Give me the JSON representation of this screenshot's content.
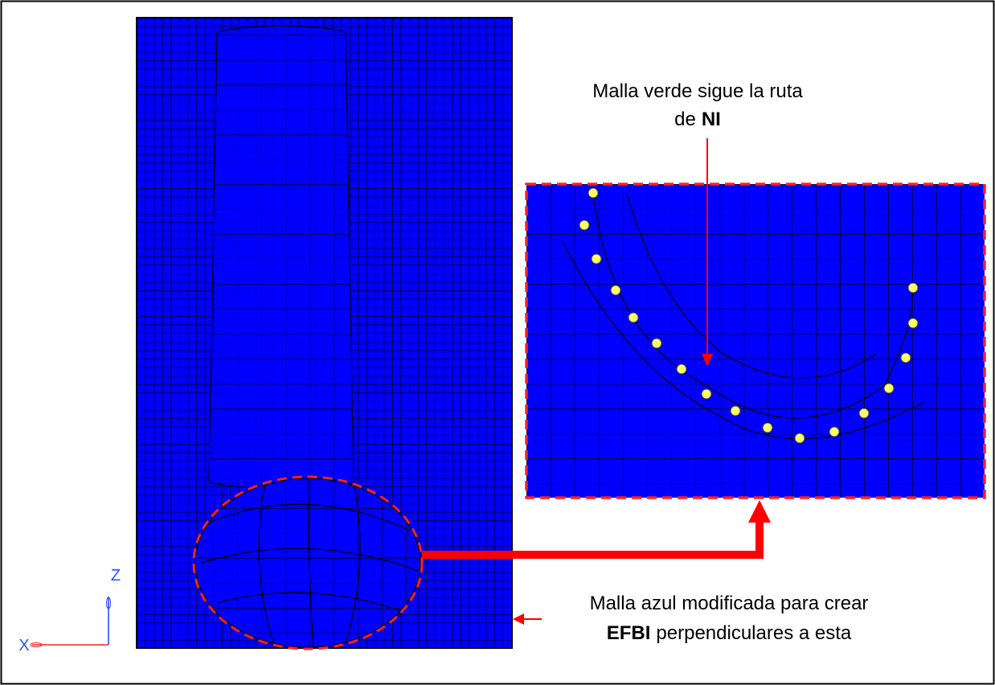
{
  "callout_top": {
    "line1": "Malla verde sigue la ruta",
    "line2_prefix": "de",
    "line2_bold": "NI"
  },
  "callout_bottom": {
    "line1": "Malla azul modificada para crear",
    "line2_bold": "EFBI",
    "line2_rest": "perpendiculares a esta"
  },
  "axes": {
    "z": "Z",
    "x": "X"
  }
}
